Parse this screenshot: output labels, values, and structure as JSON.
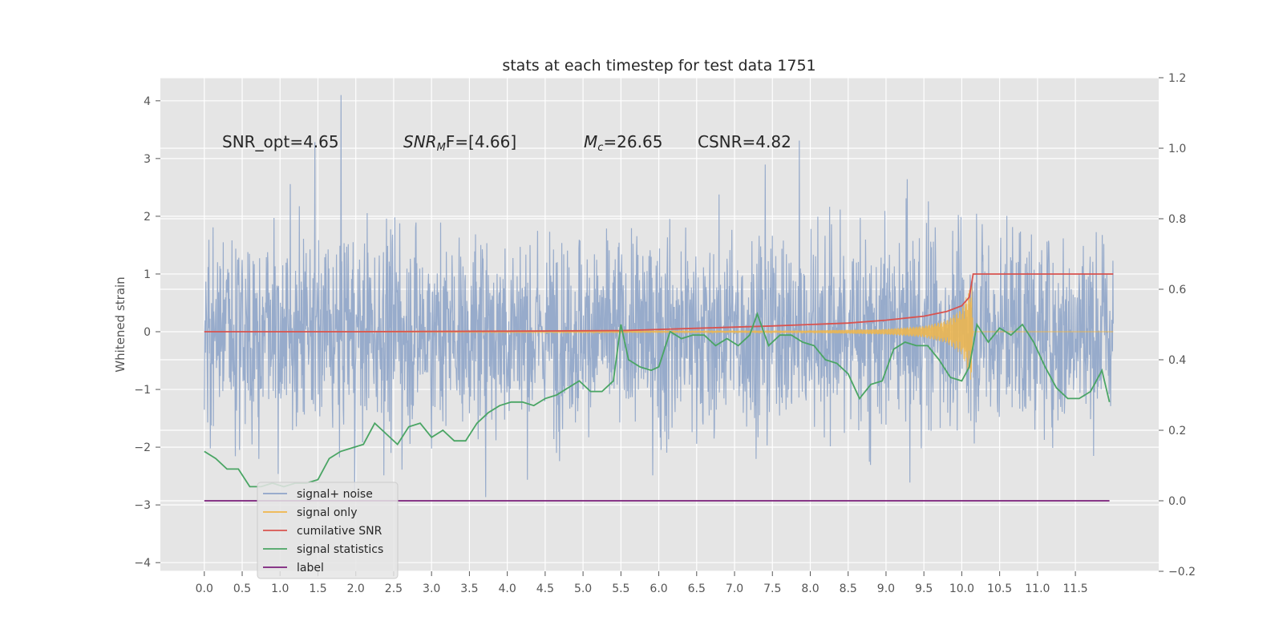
{
  "chart_data": {
    "type": "line",
    "title": "stats at each timestep for test data 1751",
    "xlabel": "",
    "ylabel": "Whitened strain",
    "xlim": [
      -0.58,
      12.6
    ],
    "ylim": [
      -4.15,
      4.4
    ],
    "y2lim": [
      -0.2,
      1.2
    ],
    "grid": true,
    "legend_position": "lower-left",
    "x_ticks": [
      "0.0",
      "0.5",
      "1.0",
      "1.5",
      "2.0",
      "2.5",
      "3.0",
      "3.5",
      "4.0",
      "4.5",
      "5.0",
      "5.5",
      "6.0",
      "6.5",
      "7.0",
      "7.5",
      "8.0",
      "8.5",
      "9.0",
      "9.5",
      "10.0",
      "10.5",
      "11.0",
      "11.5"
    ],
    "y_ticks": [
      "4",
      "3",
      "2",
      "1",
      "0",
      "−1",
      "−2",
      "−3",
      "−4"
    ],
    "y2_ticks": [
      "1.2",
      "1.0",
      "0.8",
      "0.6",
      "0.4",
      "0.2",
      "0.0",
      "−0.2"
    ],
    "annotations": [
      {
        "id": "snr_opt",
        "text": "SNR_opt=4.65"
      },
      {
        "id": "snr_mf",
        "base": "SNR",
        "sub": "M",
        "rest": "F=[4.66]"
      },
      {
        "id": "mc",
        "base": "M",
        "sub": "c",
        "rest": "=26.65"
      },
      {
        "id": "csnr",
        "text": "CSNR=4.82"
      }
    ],
    "legend": [
      "signal+ noise",
      "signal only",
      "cumilative SNR",
      "signal statistics",
      "label"
    ],
    "series": [
      {
        "name": "signal+ noise",
        "axis": "left",
        "color": "#8ea4c8",
        "x_range": [
          0.0,
          12.0
        ],
        "noise_std": 0.75,
        "peak_max": 4.1,
        "peak_min": -3.75
      },
      {
        "name": "signal only",
        "axis": "left",
        "color": "#f0b64a",
        "x": [
          0.0,
          8.0,
          9.0,
          9.5,
          9.8,
          10.0,
          10.1,
          10.13,
          10.15,
          12.0
        ],
        "amplitude": [
          0.0,
          0.02,
          0.05,
          0.1,
          0.2,
          0.4,
          0.75,
          0.9,
          0.0,
          0.0
        ]
      },
      {
        "name": "cumilative SNR",
        "axis": "left",
        "color": "#d9534f",
        "x": [
          0.0,
          2.0,
          4.0,
          5.5,
          6.5,
          7.5,
          8.5,
          9.0,
          9.5,
          9.8,
          10.0,
          10.1,
          10.15,
          12.0
        ],
        "y": [
          0.0,
          0.0,
          0.01,
          0.02,
          0.06,
          0.1,
          0.15,
          0.2,
          0.27,
          0.35,
          0.45,
          0.6,
          1.0,
          1.0
        ]
      },
      {
        "name": "signal statistics",
        "axis": "right",
        "color": "#4aa564",
        "x": [
          0.0,
          0.15,
          0.3,
          0.45,
          0.6,
          0.75,
          0.9,
          1.05,
          1.2,
          1.35,
          1.5,
          1.65,
          1.8,
          1.95,
          2.1,
          2.25,
          2.4,
          2.55,
          2.7,
          2.85,
          3.0,
          3.15,
          3.3,
          3.45,
          3.6,
          3.75,
          3.9,
          4.05,
          4.2,
          4.35,
          4.5,
          4.65,
          4.8,
          4.95,
          5.1,
          5.25,
          5.4,
          5.5,
          5.6,
          5.75,
          5.9,
          6.0,
          6.15,
          6.3,
          6.45,
          6.6,
          6.75,
          6.9,
          7.05,
          7.2,
          7.3,
          7.45,
          7.6,
          7.75,
          7.9,
          8.05,
          8.2,
          8.35,
          8.5,
          8.65,
          8.8,
          8.95,
          9.1,
          9.25,
          9.4,
          9.55,
          9.7,
          9.85,
          10.0,
          10.1,
          10.2,
          10.35,
          10.5,
          10.65,
          10.8,
          10.95,
          11.1,
          11.25,
          11.4,
          11.55,
          11.7,
          11.85,
          11.95
        ],
        "y": [
          0.14,
          0.12,
          0.09,
          0.09,
          0.04,
          0.04,
          0.05,
          0.04,
          0.05,
          0.05,
          0.06,
          0.12,
          0.14,
          0.15,
          0.16,
          0.22,
          0.19,
          0.16,
          0.21,
          0.22,
          0.18,
          0.2,
          0.17,
          0.17,
          0.22,
          0.25,
          0.27,
          0.28,
          0.28,
          0.27,
          0.29,
          0.3,
          0.32,
          0.34,
          0.31,
          0.31,
          0.34,
          0.5,
          0.4,
          0.38,
          0.37,
          0.38,
          0.48,
          0.46,
          0.47,
          0.47,
          0.44,
          0.46,
          0.44,
          0.47,
          0.53,
          0.44,
          0.47,
          0.47,
          0.45,
          0.44,
          0.4,
          0.39,
          0.36,
          0.29,
          0.33,
          0.34,
          0.43,
          0.45,
          0.44,
          0.44,
          0.4,
          0.35,
          0.34,
          0.38,
          0.5,
          0.45,
          0.49,
          0.47,
          0.5,
          0.45,
          0.38,
          0.32,
          0.29,
          0.29,
          0.31,
          0.37,
          0.28
        ]
      },
      {
        "name": "label",
        "axis": "right",
        "color": "#7a1f7a",
        "x": [
          0.0,
          11.95
        ],
        "y": [
          0.0,
          0.0
        ]
      }
    ]
  }
}
